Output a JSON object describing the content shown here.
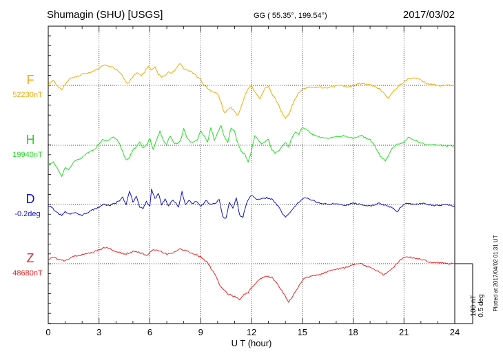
{
  "header": {
    "station": "Shumagin (SHU)  [USGS]",
    "coords": "GG ( 55.35°, 199.54°)",
    "date": "2017/03/02"
  },
  "footer": {
    "plotted_note": "Plotted at 2017/04/02 01:31  UT",
    "scale_nt": "100 nT",
    "scale_deg": "0.5 deg"
  },
  "chart_data": {
    "type": "line",
    "xlabel": "U T (hour)",
    "xlim": [
      0,
      24
    ],
    "xticks": [
      0,
      3,
      6,
      9,
      12,
      15,
      18,
      21,
      24
    ],
    "x_tick_labels": [
      "0",
      "3",
      "6",
      "9",
      "12",
      "15",
      "18",
      "21",
      "24"
    ],
    "series": [
      {
        "name": "F",
        "baseline_label": "52230nT",
        "color": "#f5a800",
        "x": [
          0,
          0.3,
          0.6,
          0.8,
          1.0,
          1.3,
          1.6,
          2.0,
          2.4,
          2.8,
          3.0,
          3.3,
          3.6,
          3.8,
          4.0,
          4.2,
          4.5,
          4.7,
          4.9,
          5.1,
          5.3,
          5.5,
          5.7,
          5.9,
          6.1,
          6.3,
          6.5,
          6.7,
          6.9,
          7.1,
          7.3,
          7.6,
          7.8,
          8.0,
          8.2,
          8.4,
          8.6,
          8.8,
          9.0,
          9.2,
          9.4,
          9.6,
          9.8,
          10.0,
          10.2,
          10.4,
          10.6,
          10.8,
          11.0,
          11.2,
          11.4,
          11.6,
          11.8,
          12.0,
          12.2,
          12.5,
          12.8,
          13.0,
          13.2,
          13.4,
          13.6,
          13.8,
          14.0,
          14.2,
          14.4,
          14.6,
          14.8,
          15.0,
          15.2,
          15.5,
          15.8,
          16.0,
          16.3,
          16.6,
          17.0,
          17.3,
          17.6,
          18.0,
          18.3,
          18.6,
          19.0,
          19.3,
          19.6,
          19.9,
          20.1,
          20.4,
          20.7,
          21.0,
          21.3,
          21.6,
          22.0,
          22.4,
          22.8,
          23.2,
          23.6,
          24.0
        ],
        "y": [
          1,
          8,
          -3,
          -6,
          2,
          10,
          12,
          16,
          18,
          22,
          25,
          30,
          28,
          26,
          24,
          20,
          8,
          2,
          10,
          16,
          18,
          14,
          20,
          28,
          22,
          26,
          16,
          12,
          14,
          20,
          18,
          26,
          32,
          24,
          22,
          20,
          18,
          12,
          8,
          0,
          -4,
          -8,
          -10,
          -12,
          -25,
          -40,
          -36,
          -32,
          -38,
          -44,
          -30,
          -15,
          -5,
          0,
          -10,
          -20,
          -4,
          -2,
          -12,
          -20,
          -28,
          -40,
          -48,
          -42,
          -30,
          -18,
          -10,
          -6,
          -4,
          -2,
          -3,
          -2,
          -4,
          -3,
          -1,
          0,
          -2,
          -1,
          2,
          2,
          1,
          -2,
          -6,
          -14,
          -18,
          -8,
          0,
          5,
          10,
          12,
          8,
          2,
          1,
          -1,
          1,
          0
        ]
      },
      {
        "name": "H",
        "baseline_label": "19940nT",
        "color": "#22dd22",
        "x": [
          0,
          0.3,
          0.6,
          0.8,
          1.0,
          1.2,
          1.5,
          1.8,
          2.0,
          2.3,
          2.6,
          2.8,
          3.0,
          3.2,
          3.5,
          3.8,
          4.0,
          4.2,
          4.4,
          4.6,
          4.8,
          5.0,
          5.2,
          5.4,
          5.6,
          5.8,
          6.0,
          6.2,
          6.4,
          6.6,
          6.8,
          7.0,
          7.2,
          7.4,
          7.6,
          7.8,
          8.0,
          8.2,
          8.4,
          8.6,
          8.8,
          9.0,
          9.2,
          9.4,
          9.6,
          9.8,
          10.0,
          10.2,
          10.4,
          10.6,
          10.8,
          11.0,
          11.2,
          11.4,
          11.6,
          11.8,
          12.0,
          12.2,
          12.4,
          12.6,
          12.8,
          13.0,
          13.2,
          13.4,
          13.6,
          13.8,
          14.0,
          14.2,
          14.4,
          14.6,
          14.8,
          15.0,
          15.3,
          15.6,
          16.0,
          16.5,
          17.0,
          17.5,
          18.0,
          18.5,
          19.0,
          19.3,
          19.6,
          19.9,
          20.1,
          20.3,
          20.6,
          21.0,
          21.3,
          21.6,
          22.0,
          22.5,
          23.0,
          23.5,
          24.0
        ],
        "y": [
          -28,
          -24,
          -36,
          -45,
          -32,
          -36,
          -24,
          -20,
          -18,
          -12,
          -8,
          -4,
          2,
          8,
          6,
          12,
          10,
          4,
          -10,
          -22,
          -18,
          -6,
          -2,
          4,
          -4,
          0,
          10,
          -6,
          8,
          20,
          6,
          2,
          14,
          4,
          2,
          6,
          24,
          10,
          4,
          6,
          8,
          20,
          14,
          4,
          26,
          8,
          18,
          28,
          12,
          4,
          26,
          20,
          2,
          -10,
          -12,
          -24,
          -8,
          14,
          8,
          2,
          6,
          8,
          -6,
          -12,
          -8,
          -2,
          4,
          -2,
          12,
          20,
          16,
          26,
          22,
          16,
          12,
          10,
          12,
          14,
          10,
          14,
          8,
          -2,
          -16,
          -22,
          -14,
          -4,
          2,
          4,
          12,
          8,
          4,
          0,
          1,
          -1,
          0
        ]
      },
      {
        "name": "D",
        "baseline_label": "-0.2deg",
        "color": "#1111cc",
        "x": [
          0,
          0.2,
          0.5,
          0.8,
          1.0,
          1.3,
          1.6,
          2.0,
          2.3,
          2.6,
          3.0,
          3.3,
          3.6,
          4.0,
          4.2,
          4.4,
          4.6,
          4.8,
          5.0,
          5.2,
          5.4,
          5.6,
          5.8,
          6.0,
          6.1,
          6.3,
          6.5,
          6.7,
          6.9,
          7.1,
          7.3,
          7.5,
          7.7,
          7.9,
          8.1,
          8.3,
          8.5,
          8.8,
          9.0,
          9.3,
          9.6,
          9.9,
          10.1,
          10.3,
          10.5,
          10.7,
          10.9,
          11.1,
          11.3,
          11.5,
          11.7,
          12.0,
          12.3,
          12.6,
          12.9,
          13.2,
          13.5,
          13.8,
          14.0,
          14.3,
          14.6,
          15.0,
          15.3,
          15.6,
          16.0,
          16.5,
          17.0,
          17.5,
          18.0,
          18.5,
          19.0,
          19.5,
          20.0,
          20.3,
          20.6,
          20.9,
          21.2,
          21.6,
          22.0,
          22.5,
          23.0,
          23.5,
          24.0
        ],
        "y": [
          -2,
          -4,
          -12,
          -16,
          -10,
          -14,
          -12,
          -16,
          -12,
          -8,
          -4,
          0,
          -2,
          2,
          6,
          10,
          0,
          20,
          4,
          12,
          -4,
          -6,
          4,
          -2,
          22,
          8,
          16,
          0,
          8,
          -2,
          6,
          4,
          -4,
          18,
          0,
          6,
          2,
          4,
          -4,
          6,
          0,
          2,
          8,
          -18,
          -20,
          4,
          -6,
          10,
          -16,
          -18,
          2,
          14,
          8,
          8,
          10,
          8,
          0,
          -12,
          -18,
          -10,
          -2,
          8,
          10,
          6,
          2,
          0,
          2,
          -2,
          2,
          0,
          -2,
          2,
          -2,
          -4,
          -10,
          -2,
          2,
          0,
          2,
          0,
          -2,
          0,
          -2
        ]
      },
      {
        "name": "Z",
        "baseline_label": "48680nT",
        "color": "#ee2222",
        "x": [
          0,
          0.3,
          0.6,
          1.0,
          1.4,
          1.8,
          2.2,
          2.6,
          3.0,
          3.4,
          3.8,
          4.2,
          4.6,
          5.0,
          5.4,
          5.8,
          6.2,
          6.6,
          7.0,
          7.4,
          7.8,
          8.2,
          8.6,
          9.0,
          9.4,
          9.8,
          10.2,
          10.6,
          11.0,
          11.3,
          11.5,
          11.8,
          12.1,
          12.4,
          12.8,
          13.2,
          13.6,
          14.0,
          14.2,
          14.5,
          14.8,
          15.1,
          15.5,
          16.0,
          16.5,
          17.0,
          17.5,
          18.0,
          18.5,
          19.0,
          19.4,
          19.8,
          20.1,
          20.5,
          20.9,
          21.3,
          21.7,
          22.1,
          22.5,
          23.0,
          23.5,
          24.0
        ],
        "y": [
          6,
          10,
          6,
          4,
          10,
          12,
          14,
          16,
          20,
          24,
          20,
          16,
          14,
          18,
          16,
          12,
          20,
          18,
          14,
          16,
          22,
          18,
          14,
          10,
          2,
          -14,
          -34,
          -44,
          -48,
          -52,
          -46,
          -42,
          -32,
          -24,
          -18,
          -20,
          -32,
          -48,
          -56,
          -44,
          -32,
          -22,
          -18,
          -16,
          -12,
          -8,
          -6,
          -2,
          0,
          -6,
          -10,
          -16,
          -12,
          -2,
          8,
          10,
          8,
          6,
          2,
          2,
          0,
          0
        ]
      }
    ]
  }
}
